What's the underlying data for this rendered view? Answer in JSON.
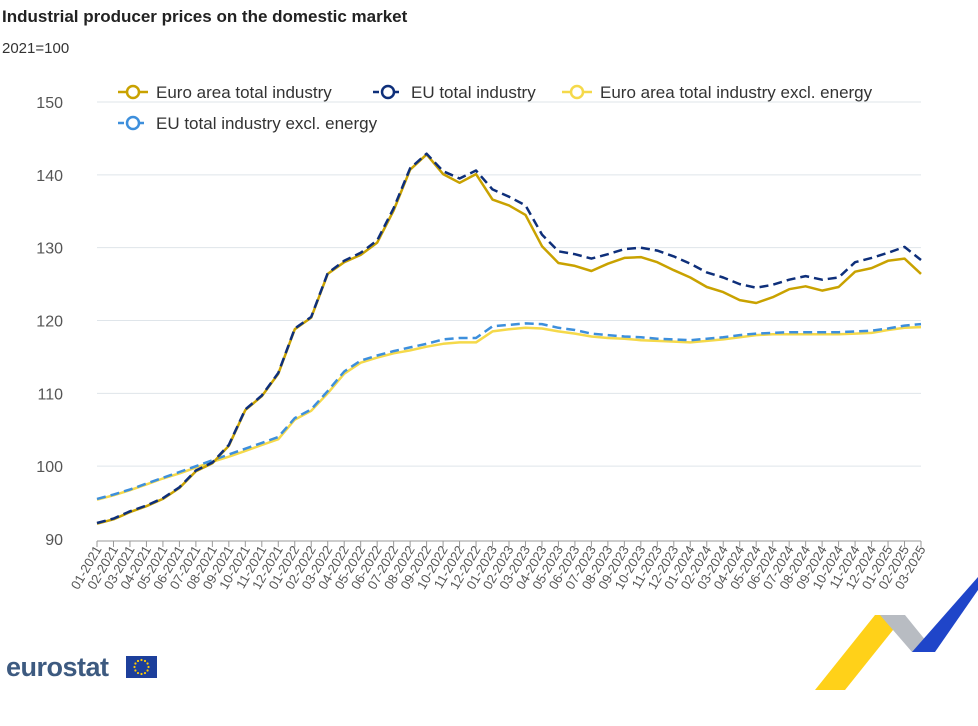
{
  "chart_data": {
    "type": "line",
    "title": "Industrial producer prices on the domestic market",
    "subtitle": "2021=100",
    "xlabel": "",
    "ylabel": "",
    "ylim": [
      90,
      150
    ],
    "yticks": [
      90,
      100,
      110,
      120,
      130,
      140,
      150
    ],
    "grid": true,
    "legend_position": "top",
    "x": [
      "01-2021",
      "02-2021",
      "03-2021",
      "04-2021",
      "05-2021",
      "06-2021",
      "07-2021",
      "08-2021",
      "09-2021",
      "10-2021",
      "11-2021",
      "12-2021",
      "01-2022",
      "02-2022",
      "03-2022",
      "04-2022",
      "05-2022",
      "06-2022",
      "07-2022",
      "08-2022",
      "09-2022",
      "10-2022",
      "11-2022",
      "12-2022",
      "01-2023",
      "02-2023",
      "03-2023",
      "04-2023",
      "05-2023",
      "06-2023",
      "07-2023",
      "08-2023",
      "09-2023",
      "10-2023",
      "11-2023",
      "12-2023",
      "01-2024",
      "02-2024",
      "03-2024",
      "04-2024",
      "05-2024",
      "06-2024",
      "07-2024",
      "08-2024",
      "09-2024",
      "10-2024",
      "11-2024",
      "12-2024",
      "01-2025",
      "02-2025",
      "03-2025"
    ],
    "series": [
      {
        "name": "Euro area total industry",
        "color": "#c9a200",
        "style": "solid",
        "values": [
          92.1,
          92.7,
          93.7,
          94.5,
          95.5,
          97.0,
          99.3,
          100.4,
          102.8,
          107.7,
          109.6,
          112.7,
          118.8,
          120.4,
          126.4,
          128.0,
          129.0,
          130.7,
          135.1,
          140.7,
          142.8,
          140.1,
          138.9,
          140.1,
          136.6,
          135.8,
          134.5,
          130.2,
          127.9,
          127.5,
          126.8,
          127.8,
          128.6,
          128.7,
          128.0,
          126.9,
          125.9,
          124.6,
          123.9,
          122.8,
          122.4,
          123.2,
          124.3,
          124.7,
          124.1,
          124.6,
          126.7,
          127.2,
          128.2,
          128.5,
          126.4
        ]
      },
      {
        "name": "EU total industry",
        "color": "#0e2f7a",
        "style": "dashed",
        "values": [
          92.2,
          92.8,
          93.8,
          94.6,
          95.6,
          97.1,
          99.4,
          100.5,
          102.9,
          107.8,
          109.7,
          112.8,
          118.9,
          120.5,
          126.5,
          128.2,
          129.3,
          131.0,
          135.4,
          140.9,
          142.9,
          140.5,
          139.5,
          140.6,
          138.0,
          137.0,
          135.8,
          131.8,
          129.5,
          129.1,
          128.5,
          129.1,
          129.8,
          130.0,
          129.6,
          128.8,
          127.8,
          126.6,
          125.9,
          125.0,
          124.5,
          124.9,
          125.6,
          126.1,
          125.6,
          125.9,
          128.0,
          128.6,
          129.3,
          130.1,
          128.3
        ]
      },
      {
        "name": "Euro area total industry excl. energy",
        "color": "#f5d94a",
        "style": "solid",
        "values": [
          95.4,
          96.0,
          96.7,
          97.5,
          98.3,
          99.0,
          99.8,
          100.6,
          101.3,
          102.1,
          102.9,
          103.7,
          106.4,
          107.6,
          110.0,
          112.7,
          114.2,
          114.9,
          115.5,
          115.9,
          116.4,
          116.8,
          117.0,
          117.0,
          118.5,
          118.8,
          119.0,
          118.9,
          118.5,
          118.2,
          117.8,
          117.6,
          117.5,
          117.3,
          117.2,
          117.1,
          117.0,
          117.2,
          117.4,
          117.7,
          118.0,
          118.1,
          118.1,
          118.1,
          118.1,
          118.1,
          118.2,
          118.3,
          118.7,
          119.0,
          119.1
        ]
      },
      {
        "name": "EU total industry excl. energy",
        "color": "#3d8fdc",
        "style": "dashed",
        "values": [
          95.5,
          96.1,
          96.8,
          97.6,
          98.4,
          99.2,
          100.0,
          100.8,
          101.6,
          102.4,
          103.2,
          104.0,
          106.6,
          107.8,
          110.3,
          113.0,
          114.5,
          115.2,
          115.8,
          116.3,
          116.8,
          117.4,
          117.6,
          117.6,
          119.2,
          119.4,
          119.6,
          119.5,
          119.0,
          118.7,
          118.2,
          118.0,
          117.8,
          117.7,
          117.5,
          117.4,
          117.3,
          117.5,
          117.7,
          118.0,
          118.2,
          118.3,
          118.4,
          118.4,
          118.4,
          118.4,
          118.5,
          118.6,
          118.9,
          119.3,
          119.5
        ]
      }
    ]
  },
  "branding": {
    "logo_text": "eurostat"
  }
}
